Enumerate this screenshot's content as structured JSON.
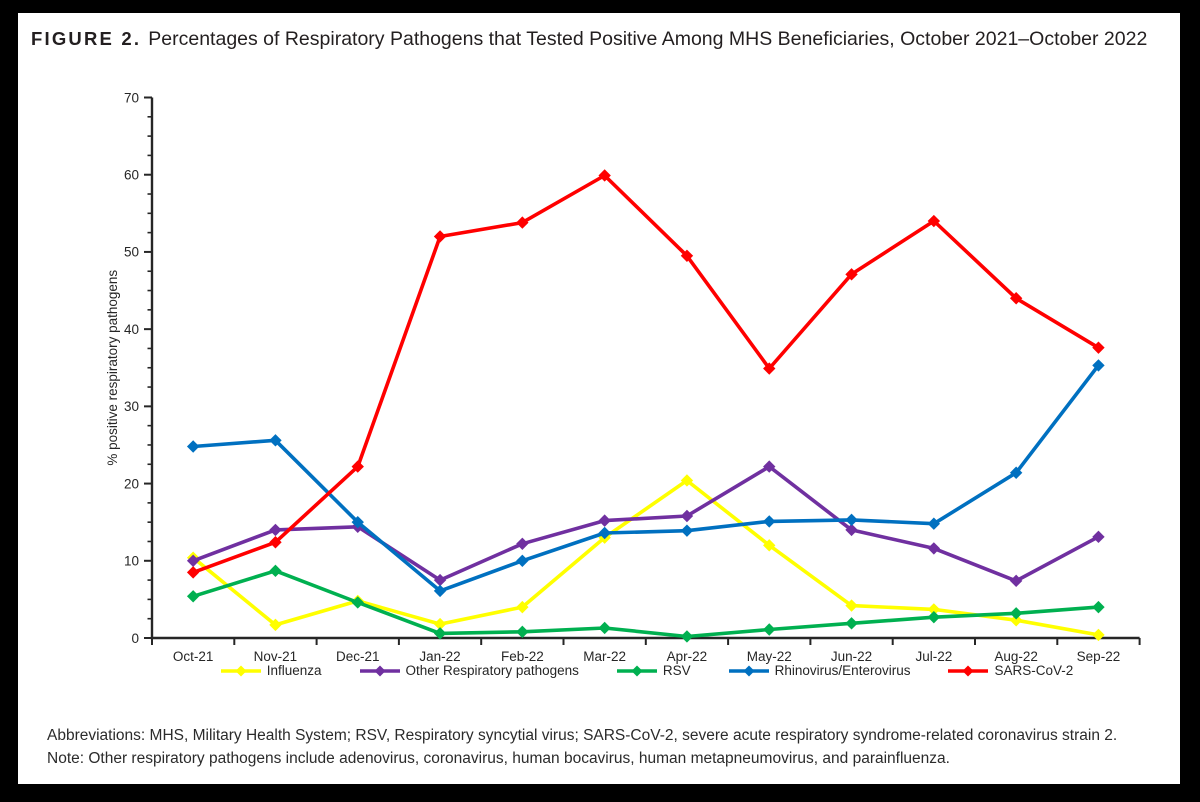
{
  "figure": {
    "label": "FIGURE 2.",
    "title": "Percentages of Respiratory Pathogens that Tested Positive Among MHS Beneficiaries, October 2021–October 2022"
  },
  "footer": {
    "abbreviations": "Abbreviations: MHS, Military Health System; RSV, Respiratory syncytial virus; SARS-CoV-2, severe acute respiratory syndrome-related coronavirus strain 2.",
    "note": "Note: Other respiratory pathogens include adenovirus, coronavirus, human bocavirus, human metapneumovirus, and parainfluenza."
  },
  "chart_data": {
    "type": "line",
    "title": "",
    "xlabel": "",
    "ylabel": "% positive respiratory pathogens",
    "ylim": [
      0,
      70
    ],
    "y_major_tick": 10,
    "y_minor_tick": 2.5,
    "grid": false,
    "marker": "diamond",
    "legend_position": "bottom",
    "axis_color": "#262626",
    "categories": [
      "Oct-21",
      "Nov-21",
      "Dec-21",
      "Jan-22",
      "Feb-22",
      "Mar-22",
      "Apr-22",
      "May-22",
      "Jun-22",
      "Jul-22",
      "Aug-22",
      "Sep-22"
    ],
    "series": [
      {
        "name": "Influenza",
        "slug": "influenza",
        "color": "#FFFF00",
        "values": [
          10.4,
          1.7,
          4.8,
          1.8,
          4.0,
          13.0,
          20.4,
          12.0,
          4.2,
          3.7,
          2.3,
          0.4
        ]
      },
      {
        "name": "Other Respiratory pathogens",
        "slug": "other-respiratory-pathogens",
        "color": "#7030A0",
        "values": [
          10.0,
          14.0,
          14.4,
          7.5,
          12.2,
          15.2,
          15.8,
          22.2,
          14.0,
          11.6,
          7.4,
          13.1
        ]
      },
      {
        "name": "RSV",
        "slug": "rsv",
        "color": "#00B050",
        "values": [
          5.4,
          8.7,
          4.6,
          0.6,
          0.8,
          1.3,
          0.2,
          1.1,
          1.9,
          2.7,
          3.2,
          4.0
        ]
      },
      {
        "name": "Rhinovirus/Enterovirus",
        "slug": "rhinovirus-enterovirus",
        "color": "#0070C0",
        "values": [
          24.8,
          25.6,
          15.0,
          6.1,
          10.0,
          13.6,
          13.9,
          15.1,
          15.3,
          14.8,
          21.4,
          35.3
        ]
      },
      {
        "name": "SARS-CoV-2",
        "slug": "sars-cov-2",
        "color": "#FF0000",
        "values": [
          8.5,
          12.4,
          22.2,
          52.0,
          53.8,
          59.9,
          49.5,
          34.9,
          47.1,
          54.0,
          44.0,
          37.6
        ]
      }
    ]
  }
}
